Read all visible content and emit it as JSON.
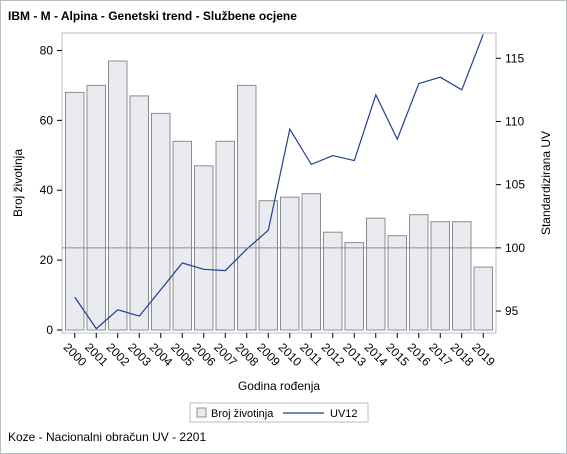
{
  "chart_data": {
    "type": "bar",
    "title": "IBM - M - Alpina - Genetski trend - Službene ocjene",
    "xlabel": "Godina rođenja",
    "ylabel": "Broj životinja",
    "y2label": "Standardizirana UV",
    "categories": [
      "2000",
      "2001",
      "2002",
      "2003",
      "2004",
      "2005",
      "2006",
      "2007",
      "2008",
      "2009",
      "2010",
      "2011",
      "2012",
      "2013",
      "2014",
      "2015",
      "2016",
      "2017",
      "2018",
      "2019"
    ],
    "ylim": [
      0,
      85
    ],
    "y2lim": [
      93.5,
      117
    ],
    "yticks": [
      0,
      20,
      40,
      60,
      80
    ],
    "y2ticks": [
      95,
      100,
      105,
      110,
      115
    ],
    "reference_line_y2": 100,
    "grid": false,
    "legend_position": "bottom",
    "series": [
      {
        "name": "Broj životinja",
        "kind": "bar",
        "axis": "left",
        "color": "#e9ebf1",
        "stroke": "#8c8c8c",
        "values": [
          68,
          70,
          77,
          67,
          62,
          54,
          47,
          54,
          70,
          37,
          38,
          39,
          28,
          25,
          32,
          27,
          33,
          31,
          31,
          18
        ]
      },
      {
        "name": "UV12",
        "kind": "line",
        "axis": "right",
        "color": "#1f3f8f",
        "values": [
          96.1,
          93.6,
          95.1,
          94.6,
          96.7,
          98.8,
          98.3,
          98.2,
          99.9,
          101.4,
          109.4,
          106.6,
          107.3,
          106.9,
          112.1,
          108.6,
          113.0,
          113.5,
          112.5,
          116.9
        ]
      }
    ]
  },
  "footnote": "Koze - Nacionalni obračun UV - 2201"
}
